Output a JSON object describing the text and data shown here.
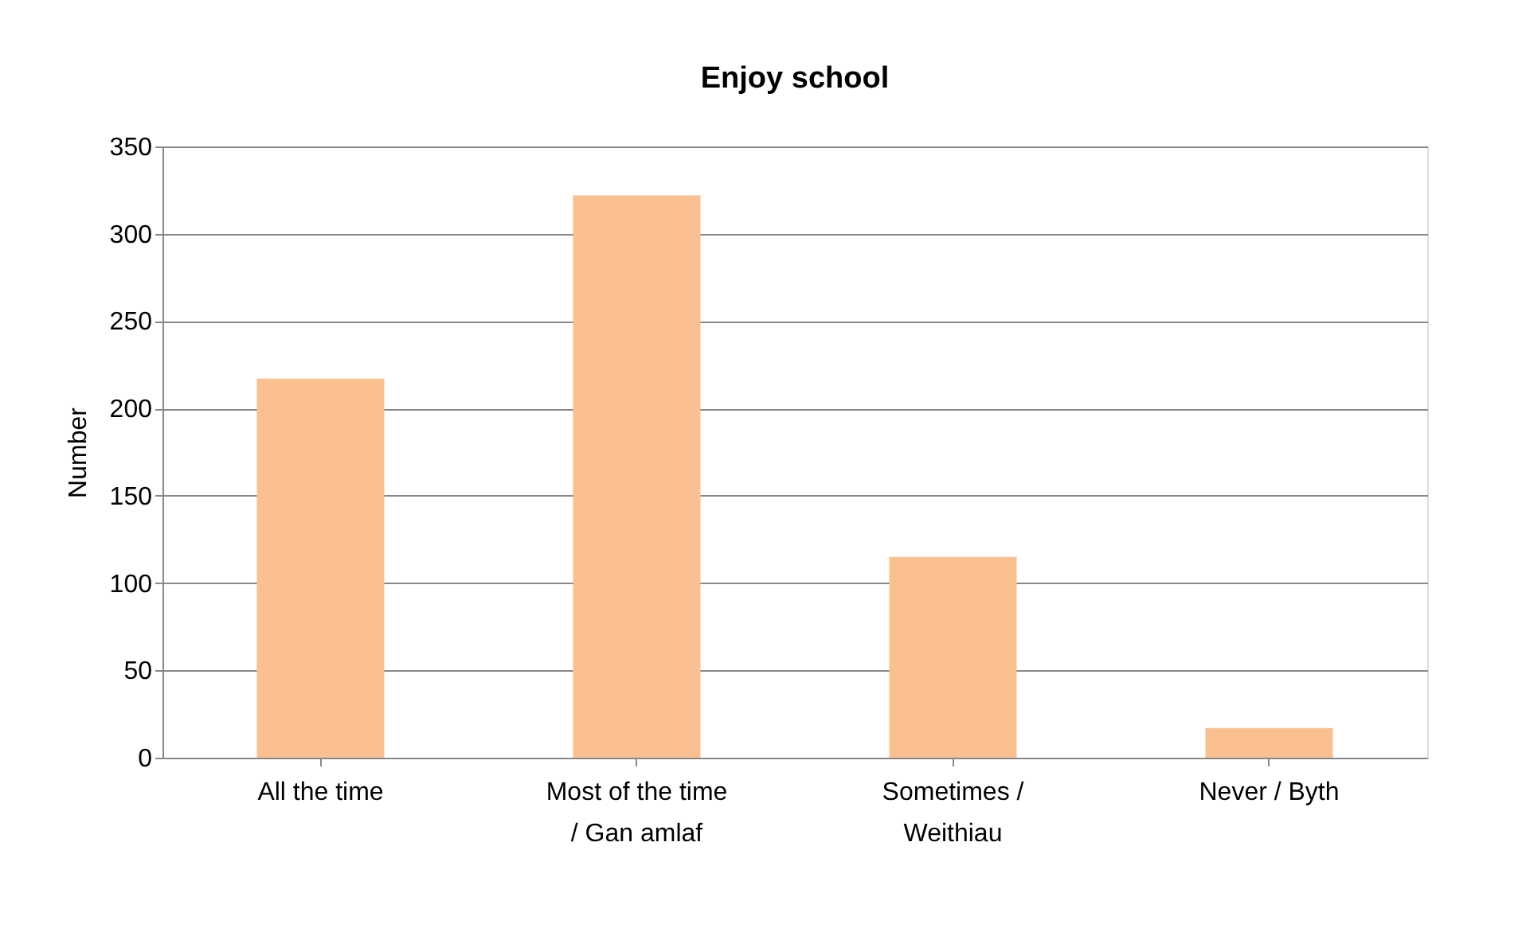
{
  "chart_data": {
    "type": "bar",
    "title": "Enjoy school",
    "ylabel": "Number",
    "categories": [
      "All the time",
      "Most of the time / Gan amlaf",
      "Sometimes / Weithiau",
      "Never / Byth"
    ],
    "values": [
      217,
      322,
      115,
      17
    ],
    "color": "#fac090",
    "ylim": [
      0,
      350
    ],
    "yticks": [
      0,
      50,
      100,
      150,
      200,
      250,
      300,
      350
    ],
    "grid": "y"
  }
}
